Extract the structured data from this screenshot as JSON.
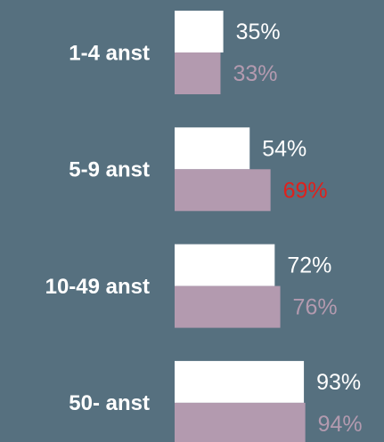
{
  "chart_data": {
    "type": "hbar",
    "categories": [
      "1-4 anst",
      "5-9 anst",
      "10-49 anst",
      "50- anst"
    ],
    "series": [
      {
        "color": "#ffffff",
        "label_color": "#ffffff",
        "values": [
          35,
          54,
          72,
          93
        ],
        "value_labels": [
          "35%",
          "54%",
          "72%",
          "93%"
        ]
      },
      {
        "color": "#b39aaf",
        "label_color": "#b39aaf",
        "values": [
          33,
          69,
          76,
          94
        ],
        "value_labels": [
          "33%",
          "69%",
          "76%",
          "94%"
        ],
        "label_colors": [
          "#b39aaf",
          "#e0201b",
          "#b39aaf",
          "#b39aaf"
        ]
      }
    ],
    "xlim": [
      0,
      100
    ]
  }
}
